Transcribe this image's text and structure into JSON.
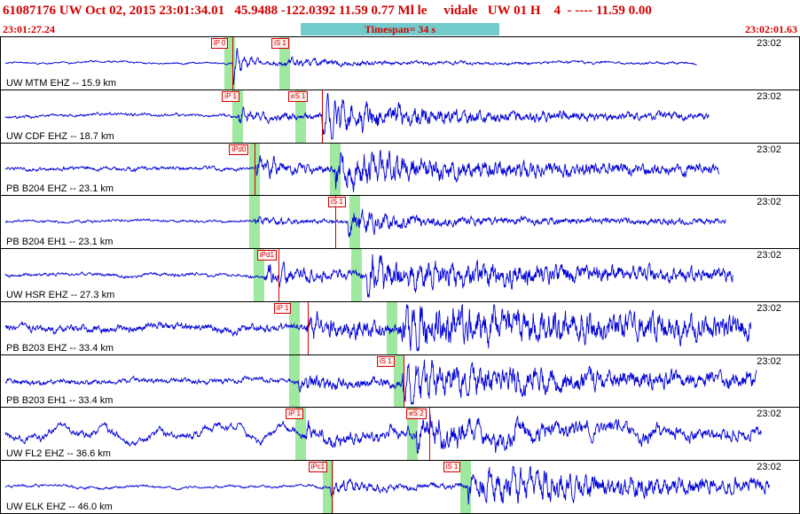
{
  "header": {
    "text": "61087176 UW Oct 02, 2015 23:01:34.01   45.9488 -122.0392 11.59 0.77 Ml le     vidale   UW 01 H    4  - ---- 11.59 0.00"
  },
  "timebar": {
    "start": "23:01:27.24",
    "span": "Timespan= 34 s",
    "end": "23:02:01.63"
  },
  "colors": {
    "accent_red": "#d40000",
    "timespan_bg": "#73cccc",
    "trace_blue": "#0000d8",
    "band_green": "#9fe89f",
    "panel_border": "#000000"
  },
  "chart_data": {
    "type": "line",
    "title": "Nine-station seismogram display for event 61087176",
    "x_axis": {
      "start": "23:01:27.24",
      "end": "23:02:01.63",
      "timespan_seconds": 34,
      "minute_mark": "23:02"
    },
    "stations": [
      {
        "label": "UW MTM EHZ -- 15.9 km",
        "clock": "23:02",
        "trace_end": 0.872,
        "seed": 101,
        "bands": [
          0.287,
          0.356
        ],
        "lines": [
          0.29
        ],
        "picks": [
          {
            "label": "iP 0",
            "x": 0.263
          },
          {
            "label": "iS 1",
            "x": 0.339
          }
        ],
        "wave": {
          "n": 1.1,
          "lf": 0.6,
          "p_x": 0.29,
          "P": 10,
          "K": 23,
          "pt": 10,
          "C": 4,
          "ct": 90,
          "s_x": 0.356,
          "S": 3.5,
          "Ks": 3,
          "st": 90,
          "T": 0.6
        }
      },
      {
        "label": "UW CDF EHZ -- 18.7 km",
        "clock": "23:02",
        "trace_end": 0.887,
        "seed": 102,
        "bands": [
          0.297,
          0.375
        ],
        "lines": [
          0.402
        ],
        "picks": [
          {
            "label": "iP 1",
            "x": 0.277
          },
          {
            "label": "eS 1",
            "x": 0.36
          }
        ],
        "wave": {
          "n": 2.0,
          "lf": 0.7,
          "p_x": 0.297,
          "P": 5,
          "K": 5,
          "pt": 40,
          "C": 3,
          "ct": 220,
          "s_x": 0.402,
          "S": 19,
          "Ks": 13,
          "st": 130,
          "T": 3
        }
      },
      {
        "label": "PB B204 EHZ -- 23.1 km",
        "clock": "23:02",
        "trace_end": 0.9,
        "seed": 103,
        "bands": [
          0.318,
          0.419
        ],
        "lines": [
          0.318
        ],
        "picks": [
          {
            "label": "iPd0",
            "x": 0.286
          }
        ],
        "wave": {
          "n": 2.6,
          "lf": 0.7,
          "p_x": 0.318,
          "P": 11,
          "K": 11,
          "pt": 25,
          "C": 5,
          "ct": 260,
          "s_x": 0.419,
          "S": 17,
          "Ks": 12,
          "st": 150,
          "T": 4
        }
      },
      {
        "label": "PB B204 EH1 -- 23.1 km",
        "clock": "23:02",
        "trace_end": 0.908,
        "seed": 104,
        "bands": [
          0.318,
          0.443
        ],
        "lines": [
          0.419
        ],
        "picks": [
          {
            "label": "iS 1",
            "x": 0.41
          }
        ],
        "wave": {
          "n": 1.7,
          "lf": 0.6,
          "p_x": 0.318,
          "P": 3,
          "K": 3,
          "pt": 40,
          "C": 2,
          "ct": 200,
          "s_x": 0.435,
          "S": 12,
          "Ks": 10,
          "st": 70,
          "T": 3
        }
      },
      {
        "label": "UW HSR EHZ -- 27.3 km",
        "clock": "23:02",
        "trace_end": 0.917,
        "seed": 105,
        "bands": [
          0.323,
          0.446
        ],
        "lines": [
          0.348
        ],
        "picks": [
          {
            "label": "iPd1",
            "x": 0.321
          }
        ],
        "wave": {
          "n": 2.2,
          "lf": 0.8,
          "p_x": 0.33,
          "P": 8,
          "K": 7,
          "pt": 50,
          "C": 5,
          "ct": 320,
          "s_x": 0.458,
          "S": 15,
          "Ks": 12,
          "st": 260,
          "T": 4.5
        }
      },
      {
        "label": "PB B203 EHZ -- 33.4 km",
        "clock": "23:02",
        "trace_end": 0.94,
        "seed": 106,
        "bands": [
          0.368,
          0.49
        ],
        "lines": [
          0.384
        ],
        "picks": [
          {
            "label": "iP 1",
            "x": 0.342
          }
        ],
        "wave": {
          "n": 5.5,
          "lf": 1.2,
          "p_x": 0.382,
          "P": 8,
          "K": 6,
          "pt": 60,
          "C": 6,
          "ct": 400,
          "s_x": 0.5,
          "S": 16,
          "Ks": 12,
          "st": 420,
          "T": 5
        }
      },
      {
        "label": "PB B203 EH1 -- 33.4 km",
        "clock": "23:02",
        "trace_end": 0.947,
        "seed": 107,
        "bands": [
          0.368,
          0.499
        ],
        "lines": [
          0.504
        ],
        "picks": [
          {
            "label": "iS 1",
            "x": 0.471
          }
        ],
        "wave": {
          "n": 3.6,
          "lf": 1.0,
          "p_x": 0.372,
          "P": 5,
          "K": 4,
          "pt": 60,
          "C": 4,
          "ct": 320,
          "s_x": 0.503,
          "S": 15,
          "Ks": 12,
          "st": 260,
          "T": 5
        }
      },
      {
        "label": "UW FL2 EHZ -- 36.6 km",
        "clock": "23:02",
        "trace_end": 0.953,
        "seed": 108,
        "bands": [
          0.375,
          0.515
        ],
        "lines": [
          0.537
        ],
        "picks": [
          {
            "label": "iP 1",
            "x": 0.357
          },
          {
            "label": "eS 2",
            "x": 0.508
          }
        ],
        "wave": {
          "n": 2.6,
          "lf": 4.0,
          "p_x": 0.378,
          "P": 6,
          "K": 6,
          "pt": 60,
          "C": 4,
          "ct": 300,
          "s_x": 0.52,
          "S": 11,
          "Ks": 9,
          "st": 200,
          "T": 3.5
        }
      },
      {
        "label": "UW ELK EHZ -- 46.0 km",
        "clock": "23:02",
        "trace_end": 0.963,
        "seed": 109,
        "bands": [
          0.41,
          0.582
        ],
        "lines": [
          0.414
        ],
        "picks": [
          {
            "label": "iPc1",
            "x": 0.385
          },
          {
            "label": "iS 1",
            "x": 0.554
          }
        ],
        "wave": {
          "n": 1.7,
          "lf": 0.7,
          "p_x": 0.413,
          "P": 4,
          "K": 4,
          "pt": 60,
          "C": 3,
          "ct": 320,
          "s_x": 0.585,
          "S": 15,
          "Ks": 12,
          "st": 320,
          "T": 4.5
        }
      }
    ]
  }
}
